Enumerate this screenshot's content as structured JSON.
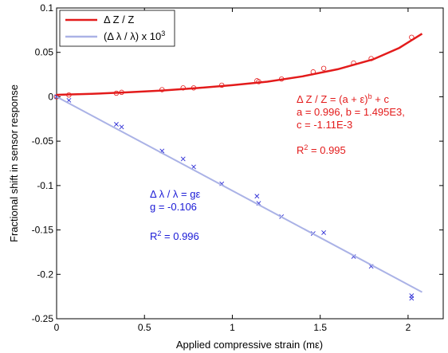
{
  "chart_data": {
    "type": "scatter",
    "xlabel": "Applied compressive strain (mε)",
    "ylabel": "Fractional shift in sensor response",
    "xlim": [
      0,
      2.2
    ],
    "ylim": [
      -0.25,
      0.1
    ],
    "x_ticks": [
      0,
      0.5,
      1,
      1.5,
      2
    ],
    "x_tick_labels": [
      "0",
      "0.5",
      "1",
      "1.5",
      "2"
    ],
    "y_ticks": [
      0.1,
      0.05,
      0,
      -0.05,
      -0.1,
      -0.15,
      -0.2,
      -0.25
    ],
    "y_tick_labels": [
      "0.1",
      "0.05",
      "0",
      "-0.05",
      "-0.1",
      "-0.15",
      "-0.2",
      "-0.25"
    ],
    "grid": false,
    "legend_position": "top-left",
    "legend": [
      {
        "label_main": "Δ Z / Z",
        "color": "#e31b1b"
      },
      {
        "label_main": "(Δ λ / λ) x 10",
        "label_sup": "3",
        "color": "#aab2e6"
      }
    ],
    "series": [
      {
        "name": "Δ Z / Z",
        "color": "#e31b1b",
        "marker": "circle",
        "points": [
          {
            "x": 0.0,
            "y": 0.0
          },
          {
            "x": 0.07,
            "y": 0.002
          },
          {
            "x": 0.34,
            "y": 0.004
          },
          {
            "x": 0.37,
            "y": 0.005
          },
          {
            "x": 0.6,
            "y": 0.008
          },
          {
            "x": 0.72,
            "y": 0.01
          },
          {
            "x": 0.78,
            "y": 0.01
          },
          {
            "x": 0.94,
            "y": 0.013
          },
          {
            "x": 1.14,
            "y": 0.018
          },
          {
            "x": 1.15,
            "y": 0.017
          },
          {
            "x": 1.28,
            "y": 0.02
          },
          {
            "x": 1.46,
            "y": 0.028
          },
          {
            "x": 1.52,
            "y": 0.032
          },
          {
            "x": 1.69,
            "y": 0.038
          },
          {
            "x": 1.79,
            "y": 0.043
          },
          {
            "x": 2.02,
            "y": 0.067
          }
        ]
      },
      {
        "name": "Δ Z / Z fit",
        "color": "#e31b1b",
        "line": true,
        "points": [
          {
            "x": 0.0,
            "y": 0.0022
          },
          {
            "x": 0.2,
            "y": 0.0033
          },
          {
            "x": 0.4,
            "y": 0.005
          },
          {
            "x": 0.6,
            "y": 0.007
          },
          {
            "x": 0.8,
            "y": 0.0098
          },
          {
            "x": 1.0,
            "y": 0.013
          },
          {
            "x": 1.2,
            "y": 0.017
          },
          {
            "x": 1.4,
            "y": 0.023
          },
          {
            "x": 1.6,
            "y": 0.031
          },
          {
            "x": 1.8,
            "y": 0.042
          },
          {
            "x": 1.95,
            "y": 0.055
          },
          {
            "x": 2.08,
            "y": 0.071
          }
        ]
      },
      {
        "name": "(Δ λ / λ) x 10^3",
        "color": "#2d2dd6",
        "marker": "x",
        "points": [
          {
            "x": 0.0,
            "y": 0.0
          },
          {
            "x": 0.07,
            "y": -0.004
          },
          {
            "x": 0.34,
            "y": -0.031
          },
          {
            "x": 0.37,
            "y": -0.034
          },
          {
            "x": 0.6,
            "y": -0.061
          },
          {
            "x": 0.72,
            "y": -0.07
          },
          {
            "x": 0.78,
            "y": -0.079
          },
          {
            "x": 0.94,
            "y": -0.098
          },
          {
            "x": 1.14,
            "y": -0.112
          },
          {
            "x": 1.15,
            "y": -0.12
          },
          {
            "x": 1.28,
            "y": -0.135
          },
          {
            "x": 1.46,
            "y": -0.154
          },
          {
            "x": 1.52,
            "y": -0.153
          },
          {
            "x": 1.69,
            "y": -0.18
          },
          {
            "x": 1.79,
            "y": -0.191
          },
          {
            "x": 2.02,
            "y": -0.224
          },
          {
            "x": 2.02,
            "y": -0.227
          }
        ]
      },
      {
        "name": "(Δ λ / λ) fit",
        "color": "#aab2e6",
        "line": true,
        "points": [
          {
            "x": 0.0,
            "y": 0.0
          },
          {
            "x": 2.08,
            "y": -0.22
          }
        ]
      }
    ],
    "annotations": {
      "red": {
        "color": "#e31b1b",
        "line1": "Δ Z / Z = (a + ε)",
        "line1_sup": "b",
        "line1_tail": " + c",
        "line2": "a = 0.996, b = 1.495E3,",
        "line3": "c = -1.11E-3",
        "r2_main": "R",
        "r2_sup": "2",
        "r2_tail": " = 0.995"
      },
      "blue": {
        "color": "#1a1ad6",
        "line1": "Δ λ / λ = gε",
        "line2": "g = -0.106",
        "r2_main": "R",
        "r2_sup": "2",
        "r2_tail": " = 0.996"
      }
    }
  }
}
